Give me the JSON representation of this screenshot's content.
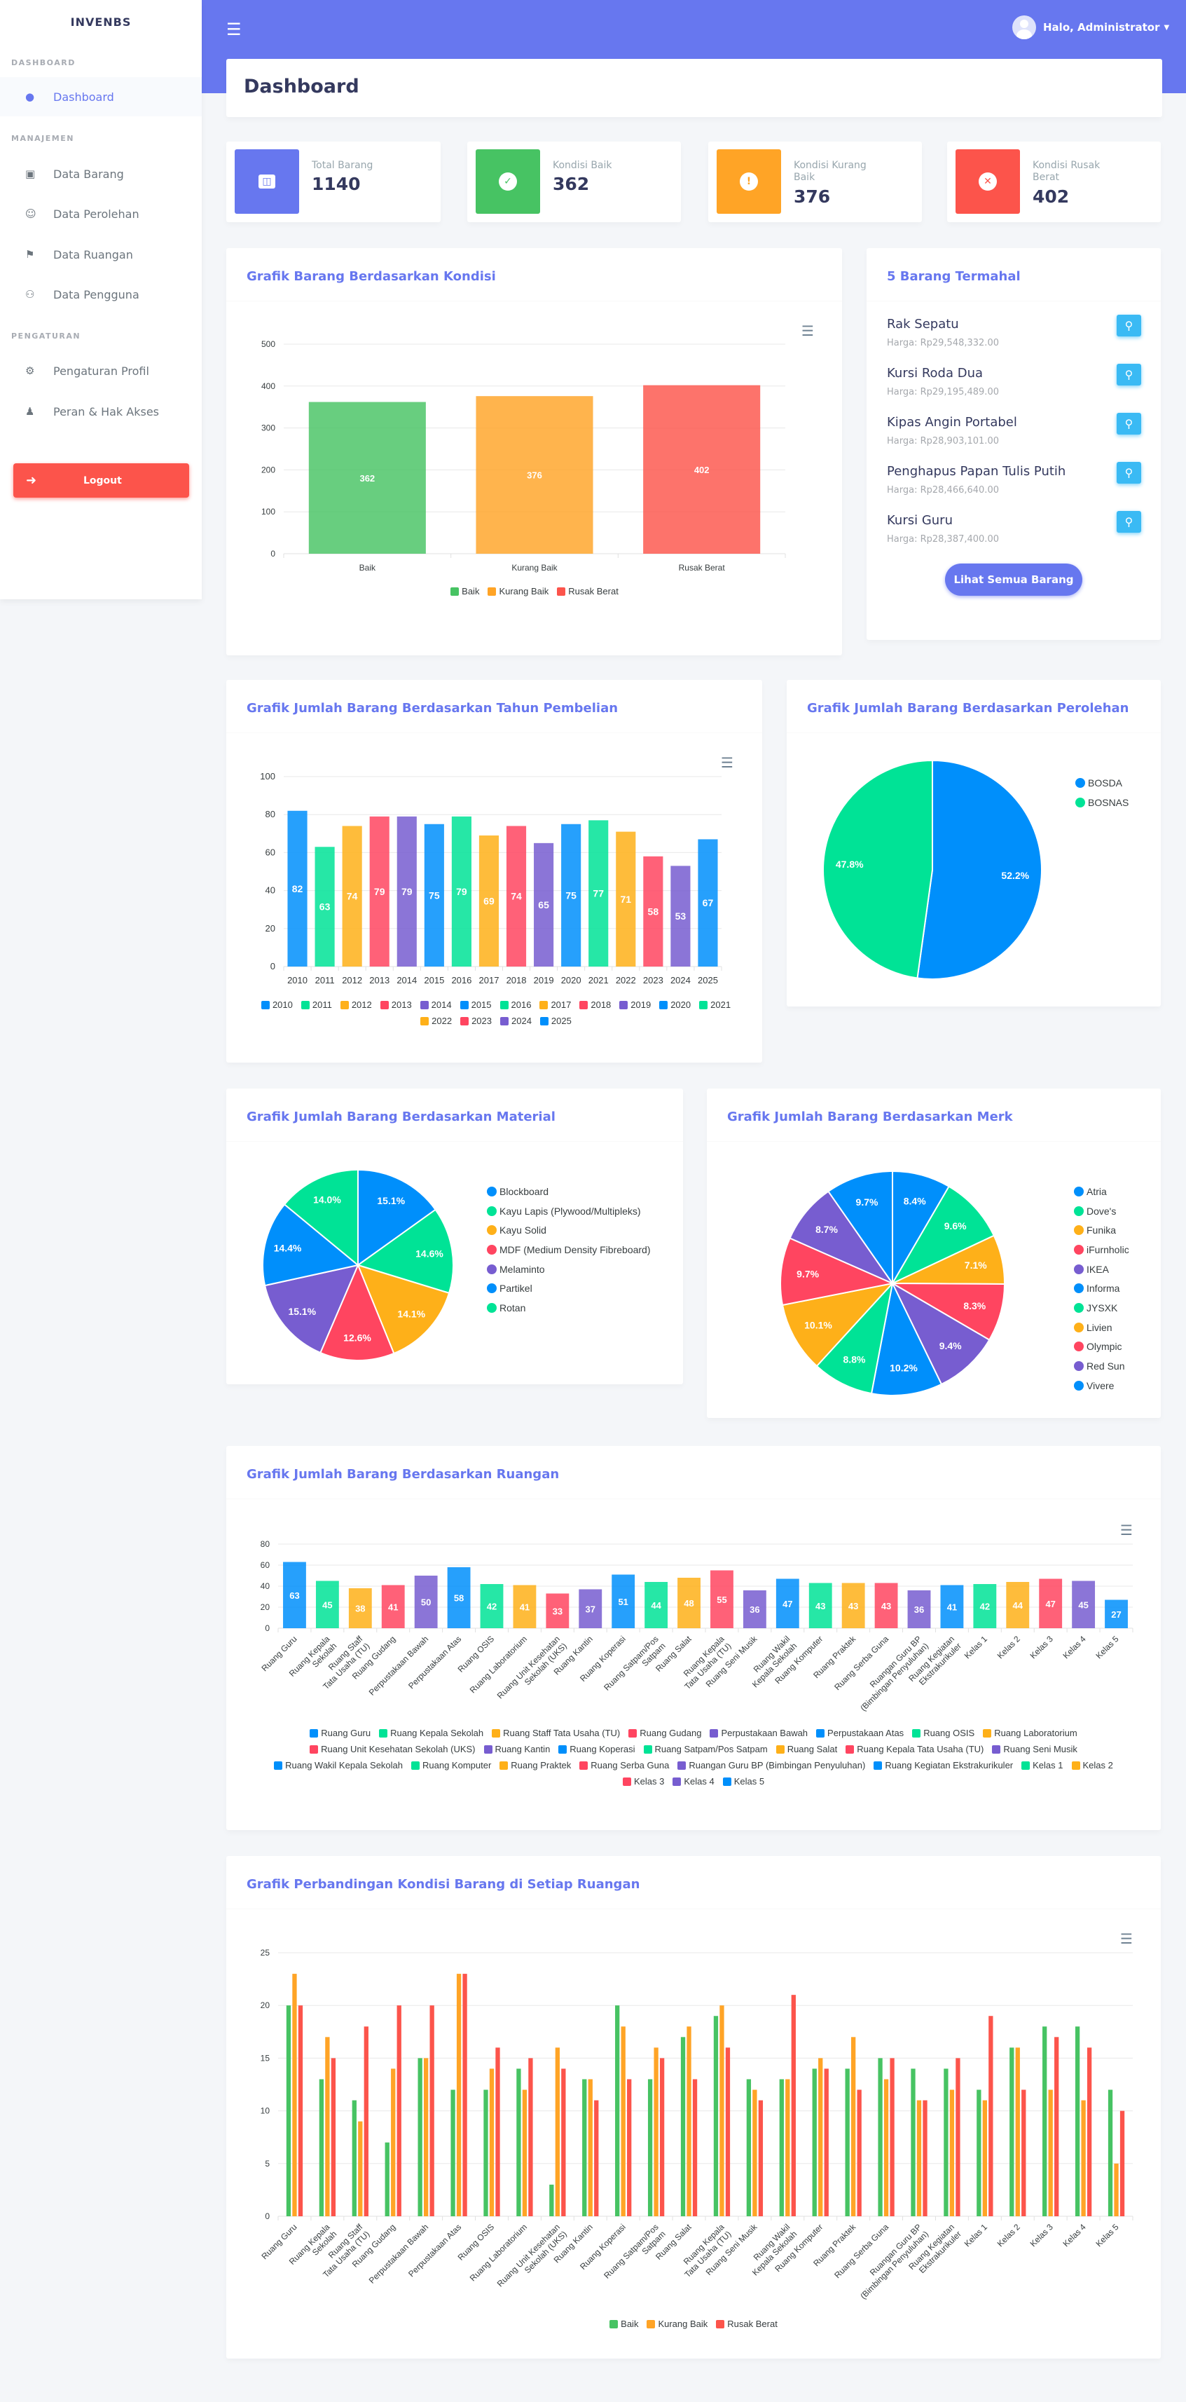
{
  "sidebar": {
    "brand": "INVENBS",
    "sections": [
      "DASHBOARD",
      "MANAJEMEN",
      "PENGATURAN"
    ],
    "items": [
      "Dashboard",
      "Data Barang",
      "Data Perolehan",
      "Data Ruangan",
      "Data Pengguna",
      "Pengaturan Profil",
      "Peran & Hak Akses"
    ],
    "logout": "Logout"
  },
  "topbar": {
    "user": "Halo, Administrator"
  },
  "page_title": "Dashboard",
  "stats": [
    {
      "label": "Total Barang",
      "value": "1140",
      "color": "#6777ef"
    },
    {
      "label": "Kondisi Baik",
      "value": "362",
      "color": "#47c363"
    },
    {
      "label": "Kondisi Kurang Baik",
      "value": "376",
      "color": "#ffa426"
    },
    {
      "label": "Kondisi Rusak Berat",
      "value": "402",
      "color": "#fc544b"
    }
  ],
  "top5": {
    "title": "5 Barang Termahal",
    "items": [
      {
        "name": "Rak Sepatu",
        "price": "Harga: Rp29,548,332.00"
      },
      {
        "name": "Kursi Roda Dua",
        "price": "Harga: Rp29,195,489.00"
      },
      {
        "name": "Kipas Angin Portabel",
        "price": "Harga: Rp28,903,101.00"
      },
      {
        "name": "Penghapus Papan Tulis Putih",
        "price": "Harga: Rp28,466,640.00"
      },
      {
        "name": "Kursi Guru",
        "price": "Harga: Rp28,387,400.00"
      }
    ],
    "button": "Lihat Semua Barang"
  },
  "chart_data": [
    {
      "type": "bar",
      "title": "Grafik Barang Berdasarkan Kondisi",
      "categories": [
        "Baik",
        "Kurang Baik",
        "Rusak Berat"
      ],
      "values": [
        362,
        376,
        402
      ],
      "colors": [
        "#47c363",
        "#ffa426",
        "#fc544b"
      ],
      "ylim": [
        0,
        500
      ],
      "yticks": [
        0,
        100,
        200,
        300,
        400,
        500
      ],
      "legend": "bottom"
    },
    {
      "type": "bar",
      "title": "Grafik Jumlah Barang Berdasarkan Tahun Pembelian",
      "categories": [
        "2010",
        "2011",
        "2012",
        "2013",
        "2014",
        "2015",
        "2016",
        "2017",
        "2018",
        "2019",
        "2020",
        "2021",
        "2022",
        "2023",
        "2024",
        "2025"
      ],
      "values": [
        82,
        63,
        74,
        79,
        79,
        75,
        79,
        69,
        74,
        65,
        75,
        77,
        71,
        58,
        53,
        67
      ],
      "ylim": [
        0,
        100
      ],
      "yticks": [
        0,
        20,
        40,
        60,
        80,
        100
      ],
      "legend": "bottom"
    },
    {
      "type": "pie",
      "title": "Grafik Jumlah Barang Berdasarkan Perolehan",
      "labels": [
        "BOSDA",
        "BOSNAS"
      ],
      "values": [
        52.2,
        47.8
      ],
      "legend": "right"
    },
    {
      "type": "pie",
      "title": "Grafik Jumlah Barang Berdasarkan Material",
      "labels": [
        "Blockboard",
        "Kayu Lapis (Plywood/Multipleks)",
        "Kayu Solid",
        "MDF (Medium Density Fibreboard)",
        "Melaminto",
        "Partikel",
        "Rotan"
      ],
      "values": [
        15.1,
        14.6,
        14.1,
        12.6,
        15.1,
        14.4,
        14.0
      ],
      "legend": "right"
    },
    {
      "type": "pie",
      "title": "Grafik Jumlah Barang Berdasarkan Merk",
      "labels": [
        "Atria",
        "Dove's",
        "Funika",
        "iFurnholic",
        "IKEA",
        "Informa",
        "JYSXK",
        "Livien",
        "Olympic",
        "Red Sun",
        "Vivere"
      ],
      "values": [
        8.4,
        9.6,
        7.1,
        8.3,
        9.4,
        10.2,
        8.8,
        10.1,
        9.7,
        8.7,
        9.7
      ],
      "legend": "right"
    },
    {
      "type": "bar",
      "title": "Grafik Jumlah Barang Berdasarkan Ruangan",
      "categories": [
        "Ruang Guru",
        "Ruang Kepala Sekolah",
        "Ruang Staff Tata Usaha (TU)",
        "Ruang Gudang",
        "Perpustakaan Bawah",
        "Perpustakaan Atas",
        "Ruang OSIS",
        "Ruang Laboratorium",
        "Ruang Unit Kesehatan Sekolah (UKS)",
        "Ruang Kantin",
        "Ruang Koperasi",
        "Ruang Satpam/Pos Satpam",
        "Ruang Salat",
        "Ruang Kepala Tata Usaha (TU)",
        "Ruang Seni Musik",
        "Ruang Wakil Kepala Sekolah",
        "Ruang Komputer",
        "Ruang Praktek",
        "Ruang Serba Guna",
        "Ruangan Guru BP (Bimbingan Penyuluhan)",
        "Ruang Kegiatan Ekstrakurikuler",
        "Kelas 1",
        "Kelas 2",
        "Kelas 3",
        "Kelas 4",
        "Kelas 5"
      ],
      "values": [
        63,
        45,
        38,
        41,
        50,
        58,
        42,
        41,
        33,
        37,
        51,
        44,
        48,
        55,
        36,
        47,
        43,
        43,
        43,
        36,
        41,
        42,
        44,
        47,
        45,
        27
      ],
      "ylim": [
        0,
        80
      ],
      "yticks": [
        0,
        20,
        40,
        60,
        80
      ],
      "legend": "bottom"
    },
    {
      "type": "bar",
      "title": "Grafik Perbandingan Kondisi Barang di Setiap Ruangan",
      "categories": [
        "Ruang Guru",
        "Ruang Kepala Sekolah",
        "Ruang Staff Tata Usaha (TU)",
        "Ruang Gudang",
        "Perpustakaan Bawah",
        "Perpustakaan Atas",
        "Ruang OSIS",
        "Ruang Laboratorium",
        "Ruang Unit Kesehatan Sekolah (UKS)",
        "Ruang Kantin",
        "Ruang Koperasi",
        "Ruang Satpam/Pos Satpam",
        "Ruang Salat",
        "Ruang Kepala Tata Usaha (TU)",
        "Ruang Seni Musik",
        "Ruang Wakil Kepala Sekolah",
        "Ruang Komputer",
        "Ruang Praktek",
        "Ruang Serba Guna",
        "Ruangan Guru BP (Bimbingan Penyuluhan)",
        "Ruang Kegiatan Ekstrakurikuler",
        "Kelas 1",
        "Kelas 2",
        "Kelas 3",
        "Kelas 4",
        "Kelas 5"
      ],
      "series": [
        {
          "name": "Baik",
          "color": "#47c363",
          "values": [
            20,
            13,
            11,
            7,
            15,
            12,
            12,
            14,
            3,
            13,
            20,
            13,
            17,
            19,
            13,
            13,
            14,
            14,
            15,
            14,
            14,
            12,
            16,
            18,
            18,
            12
          ]
        },
        {
          "name": "Kurang Baik",
          "color": "#ffa426",
          "values": [
            23,
            17,
            9,
            14,
            15,
            23,
            14,
            12,
            16,
            13,
            18,
            16,
            18,
            20,
            12,
            13,
            15,
            17,
            13,
            11,
            12,
            11,
            16,
            12,
            11,
            5
          ]
        },
        {
          "name": "Rusak Berat",
          "color": "#fc544b",
          "values": [
            20,
            15,
            18,
            20,
            20,
            23,
            16,
            15,
            14,
            11,
            13,
            15,
            13,
            16,
            11,
            21,
            14,
            12,
            15,
            11,
            15,
            19,
            12,
            17,
            16,
            10
          ]
        }
      ],
      "ylim": [
        0,
        25
      ],
      "yticks": [
        0,
        5,
        10,
        15,
        20,
        25
      ],
      "legend": "bottom"
    }
  ],
  "palette": [
    "#008ffb",
    "#00e396",
    "#feb019",
    "#ff4560",
    "#775dd0"
  ]
}
